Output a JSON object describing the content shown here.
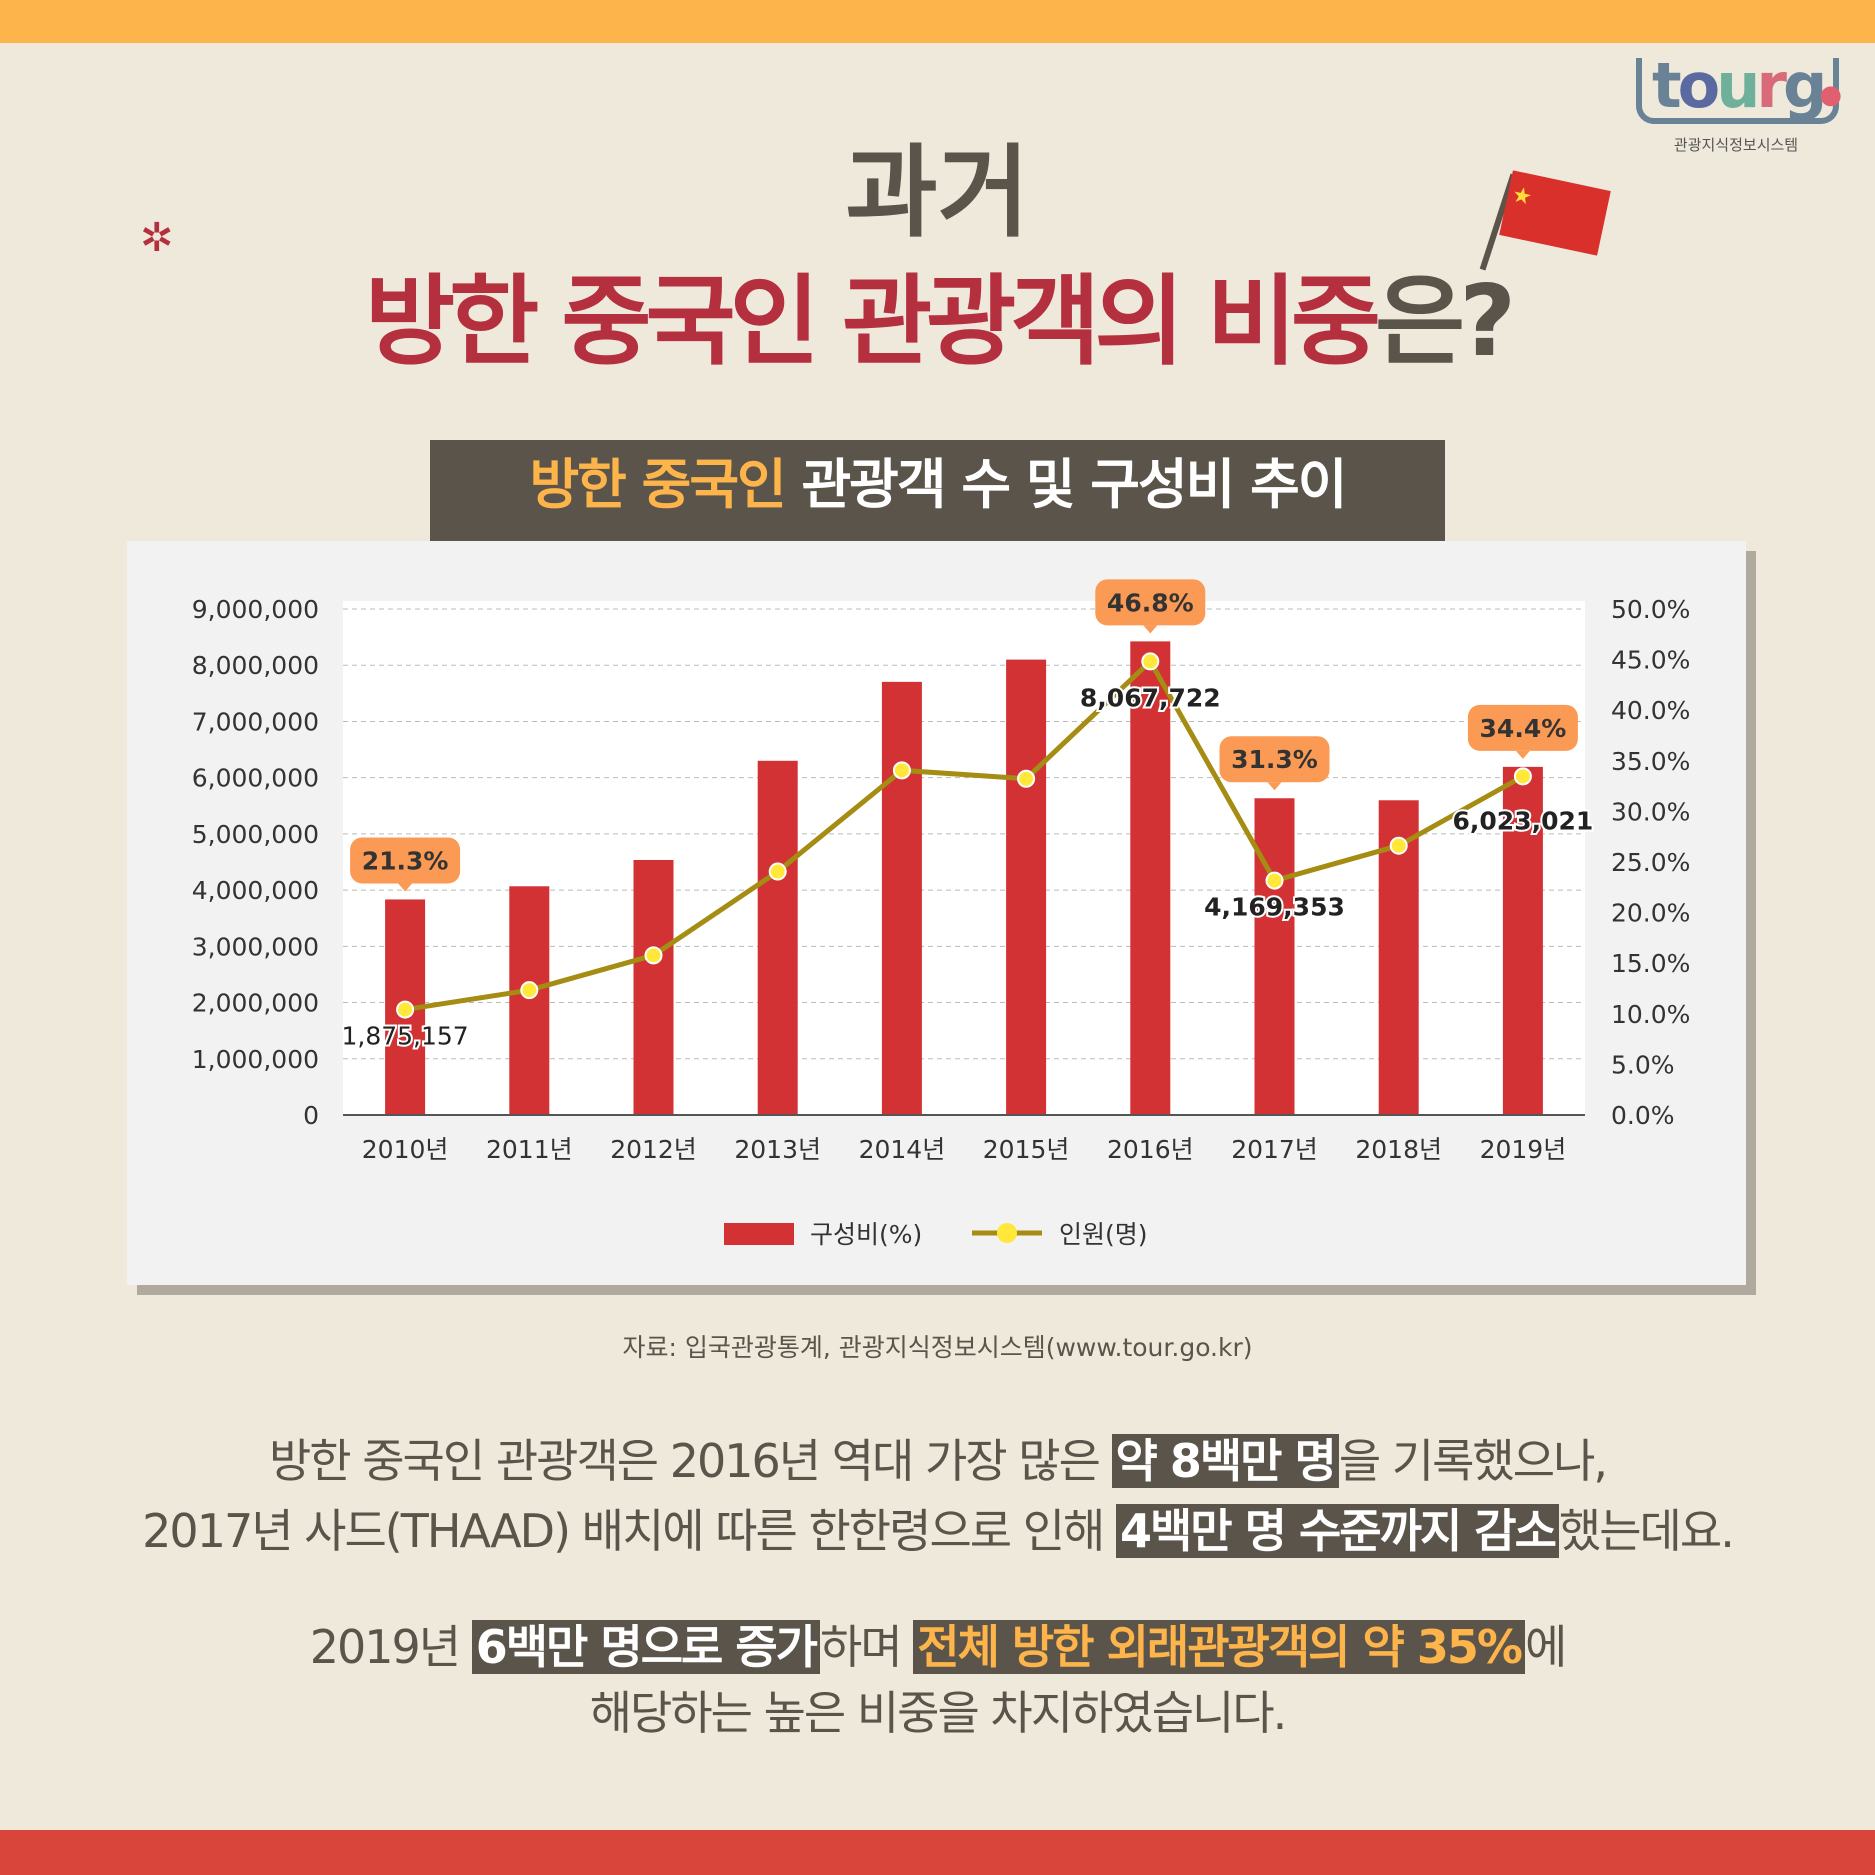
{
  "logo": {
    "word": "tourgo",
    "subtitle": "관광지식정보시스템"
  },
  "title": {
    "line1": "과거",
    "line2_main": "방한 중국인 관광객의 비중",
    "line2_tail": "은?"
  },
  "subtitle": {
    "highlight": "방한 중국인",
    "rest": " 관광객 수 및 구성비 추이"
  },
  "colors": {
    "bar": "#d33234",
    "line": "#a58c12",
    "marker": "#ffe83a",
    "callout": "#fb9a55",
    "accent": "#fdb44b",
    "title_red": "#b5303f",
    "dark": "#5b544a"
  },
  "chart_data": {
    "type": "bar+line",
    "categories": [
      "2010년",
      "2011년",
      "2012년",
      "2013년",
      "2014년",
      "2015년",
      "2016년",
      "2017년",
      "2018년",
      "2019년"
    ],
    "left_axis": {
      "ylim": [
        0,
        9000000
      ],
      "ticks": [
        "0",
        "1,000,000",
        "2,000,000",
        "3,000,000",
        "4,000,000",
        "5,000,000",
        "6,000,000",
        "7,000,000",
        "8,000,000",
        "9,000,000"
      ]
    },
    "right_axis": {
      "ylim": [
        0,
        50
      ],
      "ticks": [
        "0.0%",
        "5.0%",
        "10.0%",
        "15.0%",
        "20.0%",
        "25.0%",
        "30.0%",
        "35.0%",
        "40.0%",
        "45.0%",
        "50.0%"
      ]
    },
    "grid": true,
    "legend_position": "bottom",
    "series": [
      {
        "name": "구성비(%)",
        "kind": "bar",
        "axis": "right",
        "values": [
          21.3,
          22.6,
          25.2,
          35.0,
          42.8,
          45.0,
          46.8,
          31.3,
          31.1,
          34.4
        ]
      },
      {
        "name": "인원(명)",
        "kind": "line",
        "axis": "left",
        "values": [
          1875157,
          2220000,
          2840000,
          4330000,
          6130000,
          5980000,
          8067722,
          4169353,
          4790000,
          6023021
        ]
      }
    ],
    "callouts": [
      {
        "index": 0,
        "label": "21.3%",
        "count": "1,875,157"
      },
      {
        "index": 6,
        "label": "46.8%",
        "count": "8,067,722"
      },
      {
        "index": 7,
        "label": "31.3%",
        "count": "4,169,353"
      },
      {
        "index": 9,
        "label": "34.4%",
        "count": "6,023,021"
      }
    ]
  },
  "source": "자료: 입국관광통계, 관광지식정보시스템(www.tour.go.kr)",
  "body": {
    "p1a": "방한 중국인 관광객은 2016년 역대 가장 많은 ",
    "p1b": "약 8백만 명",
    "p1c": "을 기록했으나,",
    "p2a": "2017년 사드(THAAD) 배치에 따른 한한령으로 인해 ",
    "p2b": "4백만 명 수준까지 감소",
    "p2c": "했는데요.",
    "p3a": "2019년 ",
    "p3b": "6백만 명으로 증가",
    "p3c": "하며 ",
    "p3d": "전체 방한 외래관광객의 약 35%",
    "p3e": "에",
    "p4": "해당하는 높은 비중을 차지하였습니다."
  }
}
